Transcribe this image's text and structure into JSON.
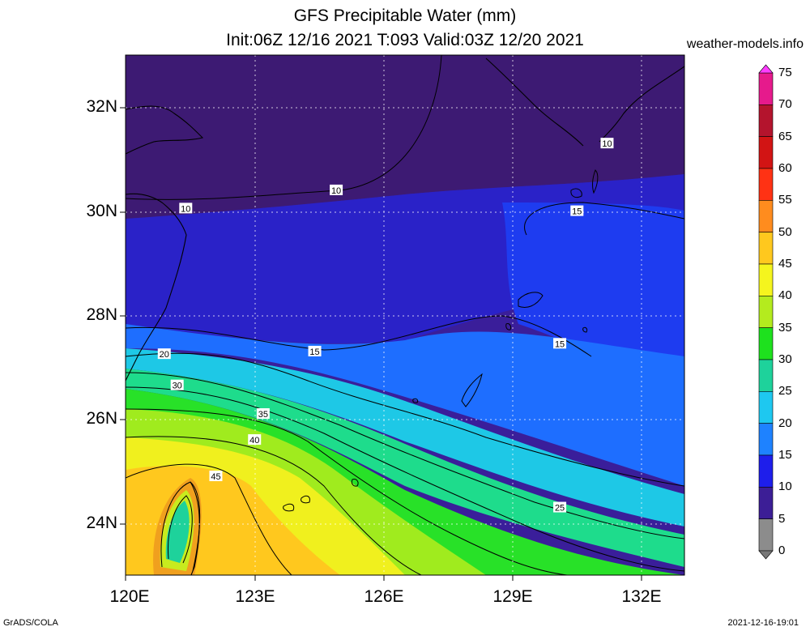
{
  "header": {
    "title_line1": "GFS Precipitable Water (mm)",
    "title_line2": "Init:06Z 12/16 2021 T:093 Valid:03Z 12/20 2021",
    "site": "weather-models.info"
  },
  "footer": {
    "left": "GrADS/COLA",
    "right": "2021-12-16-19:01"
  },
  "map": {
    "lat_labels": [
      "32N",
      "30N",
      "28N",
      "26N",
      "24N"
    ],
    "lon_labels": [
      "120E",
      "123E",
      "126E",
      "129E",
      "132E"
    ],
    "contour_labels": [
      {
        "text": "10",
        "lon": 121.4,
        "lat": 30.05
      },
      {
        "text": "10",
        "lon": 124.9,
        "lat": 30.4
      },
      {
        "text": "10",
        "lon": 131.2,
        "lat": 31.3
      },
      {
        "text": "15",
        "lon": 130.5,
        "lat": 30.0
      },
      {
        "text": "15",
        "lon": 124.4,
        "lat": 27.3
      },
      {
        "text": "15",
        "lon": 130.1,
        "lat": 27.45
      },
      {
        "text": "20",
        "lon": 120.9,
        "lat": 27.25
      },
      {
        "text": "30",
        "lon": 121.2,
        "lat": 26.65
      },
      {
        "text": "35",
        "lon": 123.2,
        "lat": 26.1
      },
      {
        "text": "40",
        "lon": 123.0,
        "lat": 25.6
      },
      {
        "text": "45",
        "lon": 122.1,
        "lat": 24.9
      },
      {
        "text": "25",
        "lon": 130.1,
        "lat": 24.3
      }
    ]
  },
  "colorbar": {
    "levels": [
      "75",
      "70",
      "65",
      "60",
      "55",
      "50",
      "45",
      "40",
      "35",
      "30",
      "25",
      "20",
      "15",
      "10",
      "5",
      "0"
    ],
    "colors": [
      "#ff3cff",
      "#e61a8c",
      "#b4142d",
      "#d21414",
      "#ff3214",
      "#ff8c1e",
      "#ffc81e",
      "#f5f51e",
      "#b4eb1e",
      "#1ee11e",
      "#1ed29b",
      "#1ec8f0",
      "#1e82ff",
      "#1e1eeb",
      "#3c1e96",
      "#8c8c8c",
      "#787878"
    ]
  }
}
